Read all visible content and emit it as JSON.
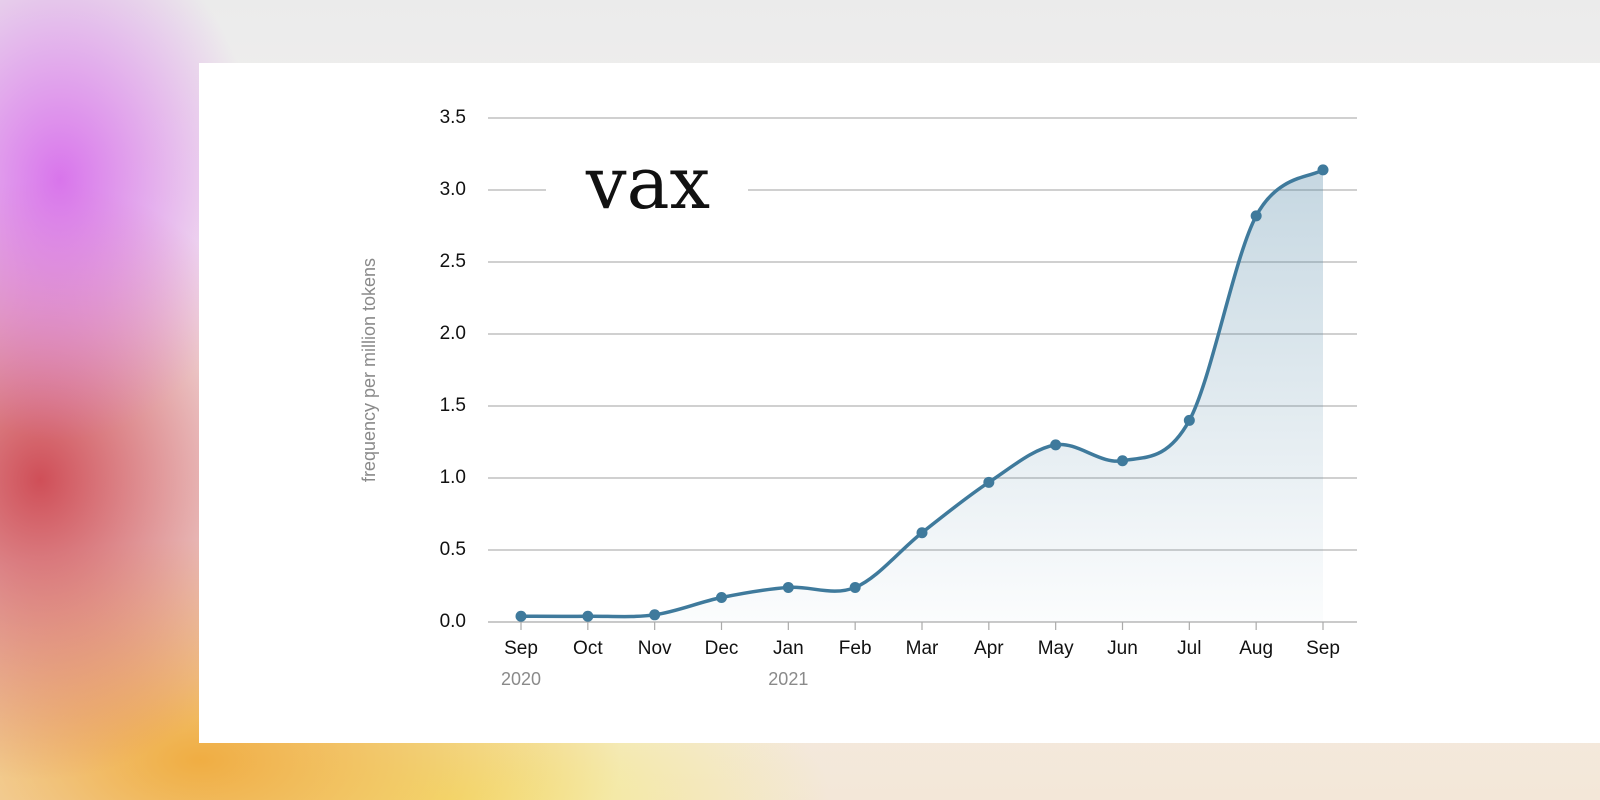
{
  "chart_data": {
    "type": "line",
    "title": "vax",
    "y_label": "frequency per million tokens",
    "categories": [
      "Sep",
      "Oct",
      "Nov",
      "Dec",
      "Jan",
      "Feb",
      "Mar",
      "Apr",
      "May",
      "Jun",
      "Jul",
      "Aug",
      "Sep"
    ],
    "year_labels": [
      "2020",
      null,
      null,
      null,
      "2021",
      null,
      null,
      null,
      null,
      null,
      null,
      null,
      null
    ],
    "values": [
      0.04,
      0.04,
      0.05,
      0.17,
      0.24,
      0.24,
      0.62,
      0.97,
      1.23,
      1.12,
      1.4,
      2.82,
      3.14
    ],
    "color": "#3f7a9c",
    "ylim": [
      0,
      3.5
    ],
    "yticks": [
      {
        "value": 0,
        "label": "0.0"
      },
      0.5,
      {
        "value": 1,
        "label": "1.0"
      },
      1.5,
      {
        "value": 2,
        "label": "2.0"
      },
      2.5,
      {
        "value": 3,
        "label": "3.0"
      },
      3.5
    ],
    "grid": true,
    "area": true
  }
}
